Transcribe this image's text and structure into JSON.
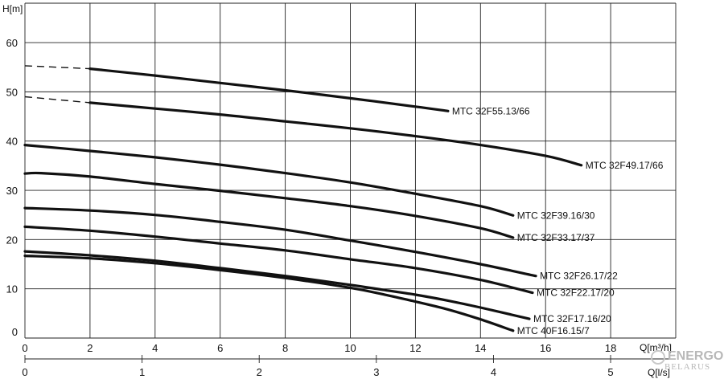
{
  "chart_data": {
    "type": "line",
    "ylabel": "H[m]",
    "xlabel": "Q[m³/h]",
    "x2label": "Q[l/s]",
    "xlim": [
      0,
      20
    ],
    "ylim": [
      0,
      68
    ],
    "x2lim": [
      0,
      5.556
    ],
    "xticks": [
      0,
      2,
      4,
      6,
      8,
      10,
      12,
      14,
      16,
      18
    ],
    "yticks": [
      0,
      10,
      20,
      30,
      40,
      50,
      60
    ],
    "x2ticks": [
      0,
      1,
      2,
      3,
      4,
      5
    ],
    "grid": true,
    "legend": "labels at curve ends",
    "series": [
      {
        "name": "MTC 32F55.13/66",
        "dashed_to": 2,
        "x": [
          0,
          2,
          4,
          6,
          8,
          10,
          12,
          13
        ],
        "y": [
          55.3,
          54.7,
          53.3,
          51.8,
          50.3,
          48.7,
          47.0,
          46.1
        ]
      },
      {
        "name": "MTC 32F49.17/66",
        "dashed_to": 2,
        "x": [
          0,
          2,
          4,
          6,
          8,
          10,
          12,
          14,
          16,
          17.1
        ],
        "y": [
          49.0,
          47.8,
          46.6,
          45.4,
          44.0,
          42.6,
          41.0,
          39.2,
          37.0,
          35.1
        ]
      },
      {
        "name": "MTC 32F39.16/30",
        "x": [
          0,
          2,
          4,
          6,
          8,
          10,
          12,
          14,
          15.0
        ],
        "y": [
          39.2,
          38.0,
          36.7,
          35.2,
          33.5,
          31.6,
          29.3,
          26.8,
          24.9
        ]
      },
      {
        "name": "MTC 32F33.17/37",
        "x": [
          0,
          0.5,
          2,
          4,
          6,
          8,
          10,
          12,
          14,
          15.0
        ],
        "y": [
          33.4,
          33.5,
          32.8,
          31.3,
          29.9,
          28.4,
          26.8,
          24.8,
          22.3,
          20.4
        ]
      },
      {
        "name": "MTC 32F26.17/22",
        "x": [
          0,
          2,
          4,
          6,
          8,
          10,
          12,
          14,
          15.7
        ],
        "y": [
          26.4,
          25.9,
          25.0,
          23.6,
          22.0,
          19.8,
          17.5,
          15.0,
          12.6
        ]
      },
      {
        "name": "MTC 32F22.17/20",
        "x": [
          0,
          2,
          4,
          6,
          8,
          10,
          12,
          14,
          15.6
        ],
        "y": [
          22.6,
          21.8,
          20.6,
          19.2,
          17.8,
          16.0,
          14.2,
          11.8,
          9.2
        ]
      },
      {
        "name": "MTC 32F17.16/20",
        "x": [
          0,
          2,
          4,
          6,
          8,
          10,
          11,
          12,
          13,
          14,
          15.5
        ],
        "y": [
          17.6,
          16.8,
          15.7,
          14.2,
          12.6,
          10.8,
          9.8,
          8.8,
          7.6,
          6.2,
          3.9
        ]
      },
      {
        "name": "MTC 40F16.15/7",
        "x": [
          0,
          2,
          4,
          6,
          8,
          10,
          11,
          12,
          13,
          14,
          15.0
        ],
        "y": [
          16.7,
          16.2,
          15.2,
          13.8,
          12.2,
          10.2,
          8.9,
          7.4,
          5.8,
          3.8,
          1.5
        ]
      }
    ]
  },
  "watermark": {
    "line1": "ENERGO",
    "line2": "BELARUS"
  }
}
